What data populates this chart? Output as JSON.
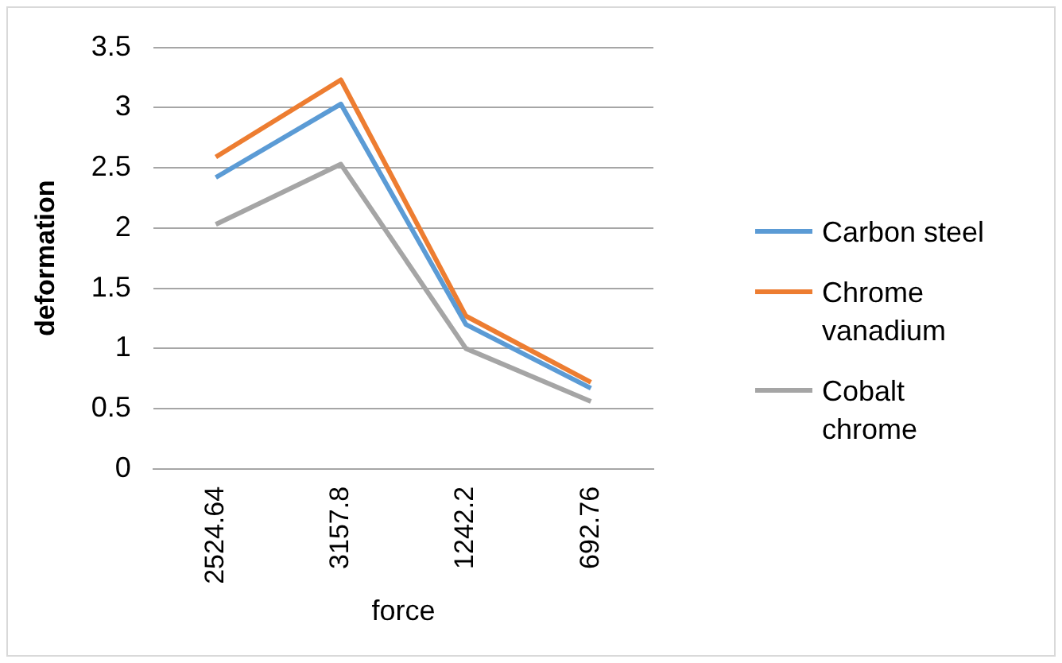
{
  "chart_data": {
    "type": "line",
    "xlabel": "force",
    "ylabel": "deformation",
    "categories": [
      "2524.64",
      "3157.8",
      "1242.2",
      "692.76"
    ],
    "series": [
      {
        "name": "Carbon steel",
        "color": "#5b9bd5",
        "values": [
          2.42,
          3.03,
          1.2,
          0.67
        ]
      },
      {
        "name": "Chrome vanadium",
        "color": "#ed7d31",
        "values": [
          2.59,
          3.23,
          1.27,
          0.72
        ]
      },
      {
        "name": "Cobalt chrome",
        "color": "#a5a5a5",
        "values": [
          2.03,
          2.53,
          1.0,
          0.56
        ]
      }
    ],
    "ylim": [
      0,
      3.5
    ],
    "yticks": [
      0,
      0.5,
      1,
      1.5,
      2,
      2.5,
      3,
      3.5
    ],
    "grid": "y",
    "legend": "right",
    "marker": "none"
  }
}
